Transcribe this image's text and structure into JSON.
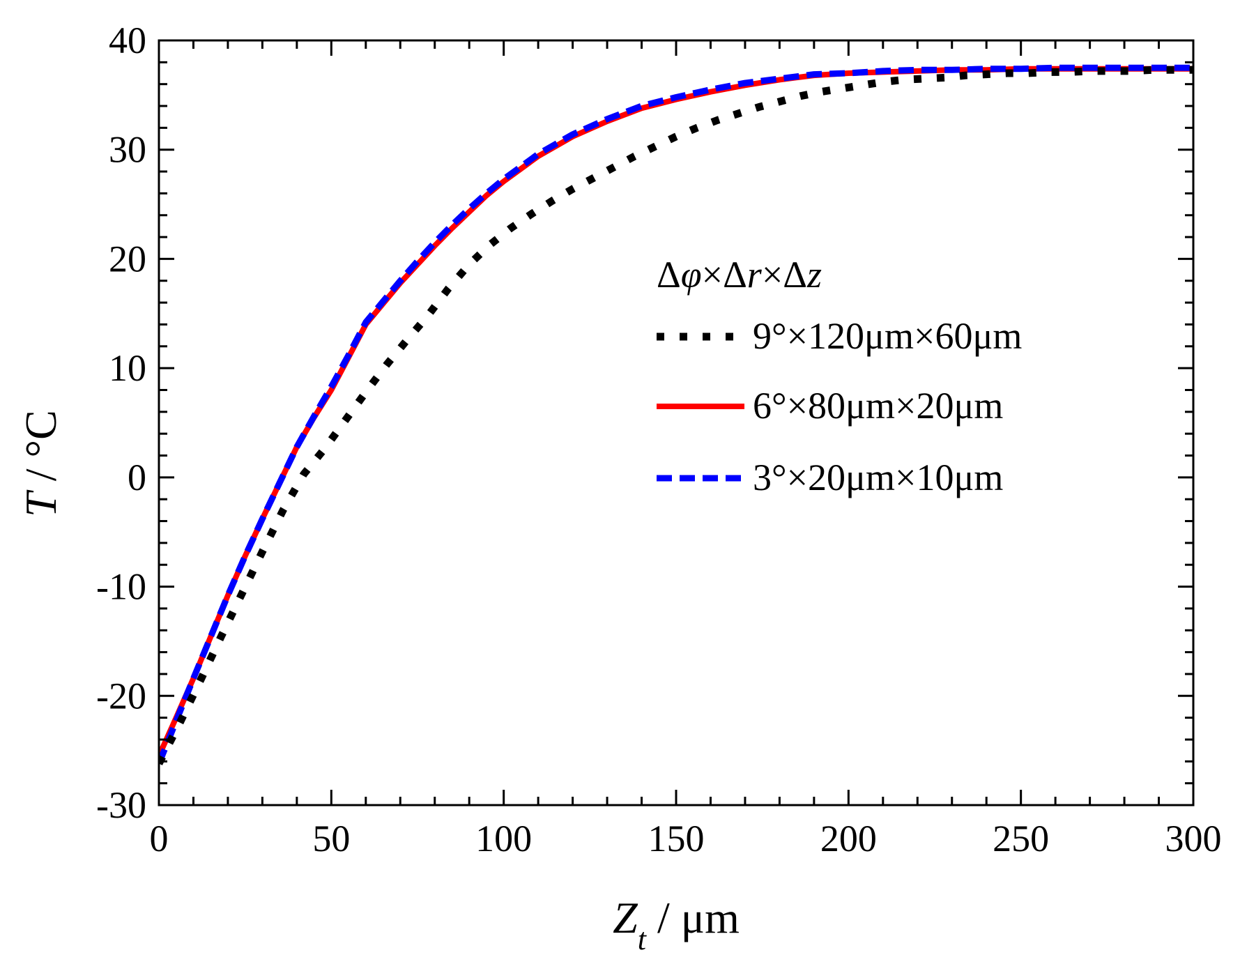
{
  "chart_data": {
    "type": "line",
    "title": "",
    "xlabel": {
      "main": "Z",
      "sub": "t",
      "unit": " / μm"
    },
    "ylabel": {
      "main": "T",
      "unit": " / °C"
    },
    "xlim": [
      0,
      300
    ],
    "ylim": [
      -30,
      40
    ],
    "x_ticks": [
      "0",
      "50",
      "100",
      "150",
      "200",
      "250",
      "300"
    ],
    "y_ticks": [
      "-30",
      "-20",
      "-10",
      "0",
      "10",
      "20",
      "30",
      "40"
    ],
    "grid": false,
    "legend": {
      "title": {
        "p1": "Δ",
        "phi": "φ",
        "p2": "×Δ",
        "r": "r",
        "p3": "×Δ",
        "z": "z"
      },
      "position": "center-right"
    },
    "series": [
      {
        "name": "9°×120μm×60μm",
        "color": "#000000",
        "style": "dotted",
        "x": [
          0,
          6,
          12,
          18,
          24,
          30,
          36,
          42,
          48,
          54,
          60,
          66,
          72,
          78,
          84,
          90,
          96,
          102,
          108,
          114,
          120,
          126,
          132,
          138,
          144,
          150,
          156,
          162,
          168,
          174,
          180,
          186,
          192,
          198,
          204,
          210,
          216,
          222,
          228,
          234,
          240,
          246,
          252,
          258,
          264,
          270,
          276,
          282,
          288,
          294,
          300
        ],
        "y": [
          -26.2,
          -22.5,
          -18.6,
          -14.6,
          -10.7,
          -6.8,
          -3.0,
          0.3,
          2.6,
          5.2,
          7.8,
          10.3,
          12.6,
          14.8,
          17.3,
          19.5,
          21.3,
          22.8,
          24.1,
          25.3,
          26.4,
          27.4,
          28.4,
          29.4,
          30.3,
          31.2,
          32.0,
          32.7,
          33.3,
          33.9,
          34.4,
          34.9,
          35.3,
          35.6,
          35.9,
          36.2,
          36.4,
          36.5,
          36.6,
          36.8,
          36.9,
          37.0,
          37.0,
          37.1,
          37.1,
          37.2,
          37.2,
          37.2,
          37.3,
          37.3,
          37.3
        ]
      },
      {
        "name": "6°×80μm×20μm",
        "color": "#ff0000",
        "style": "solid",
        "x": [
          0,
          5,
          10,
          15,
          20,
          25,
          30,
          35,
          40,
          45,
          50,
          55,
          60,
          65,
          70,
          75,
          80,
          85,
          90,
          95,
          100,
          110,
          120,
          130,
          140,
          150,
          160,
          170,
          180,
          190,
          200,
          210,
          220,
          230,
          240,
          250,
          260,
          270,
          280,
          290,
          300
        ],
        "y": [
          -25.5,
          -22.0,
          -18.4,
          -14.6,
          -10.8,
          -7.2,
          -3.8,
          -0.5,
          2.8,
          5.5,
          8.0,
          11.0,
          14.0,
          15.9,
          17.8,
          19.5,
          21.2,
          22.8,
          24.3,
          25.8,
          27.1,
          29.4,
          31.2,
          32.6,
          33.8,
          34.6,
          35.3,
          35.9,
          36.4,
          36.8,
          37.0,
          37.1,
          37.2,
          37.3,
          37.3,
          37.4,
          37.4,
          37.4,
          37.4,
          37.4,
          37.4
        ]
      },
      {
        "name": "3°×20μm×10μm",
        "color": "#0000ff",
        "style": "dashed",
        "x": [
          0,
          5,
          10,
          15,
          20,
          25,
          30,
          35,
          40,
          45,
          50,
          55,
          60,
          65,
          70,
          75,
          80,
          85,
          90,
          95,
          100,
          110,
          120,
          130,
          140,
          150,
          160,
          170,
          180,
          190,
          200,
          210,
          220,
          230,
          240,
          250,
          260,
          270,
          280,
          290,
          300
        ],
        "y": [
          -26.2,
          -22.3,
          -18.4,
          -14.6,
          -10.8,
          -7.2,
          -3.8,
          -0.5,
          2.8,
          5.6,
          8.3,
          11.2,
          14.2,
          16.1,
          18.0,
          19.8,
          21.5,
          23.1,
          24.6,
          26.0,
          27.3,
          29.6,
          31.4,
          32.8,
          34.0,
          34.8,
          35.5,
          36.1,
          36.5,
          36.9,
          37.0,
          37.2,
          37.3,
          37.3,
          37.4,
          37.4,
          37.5,
          37.5,
          37.5,
          37.5,
          37.5
        ]
      }
    ]
  }
}
